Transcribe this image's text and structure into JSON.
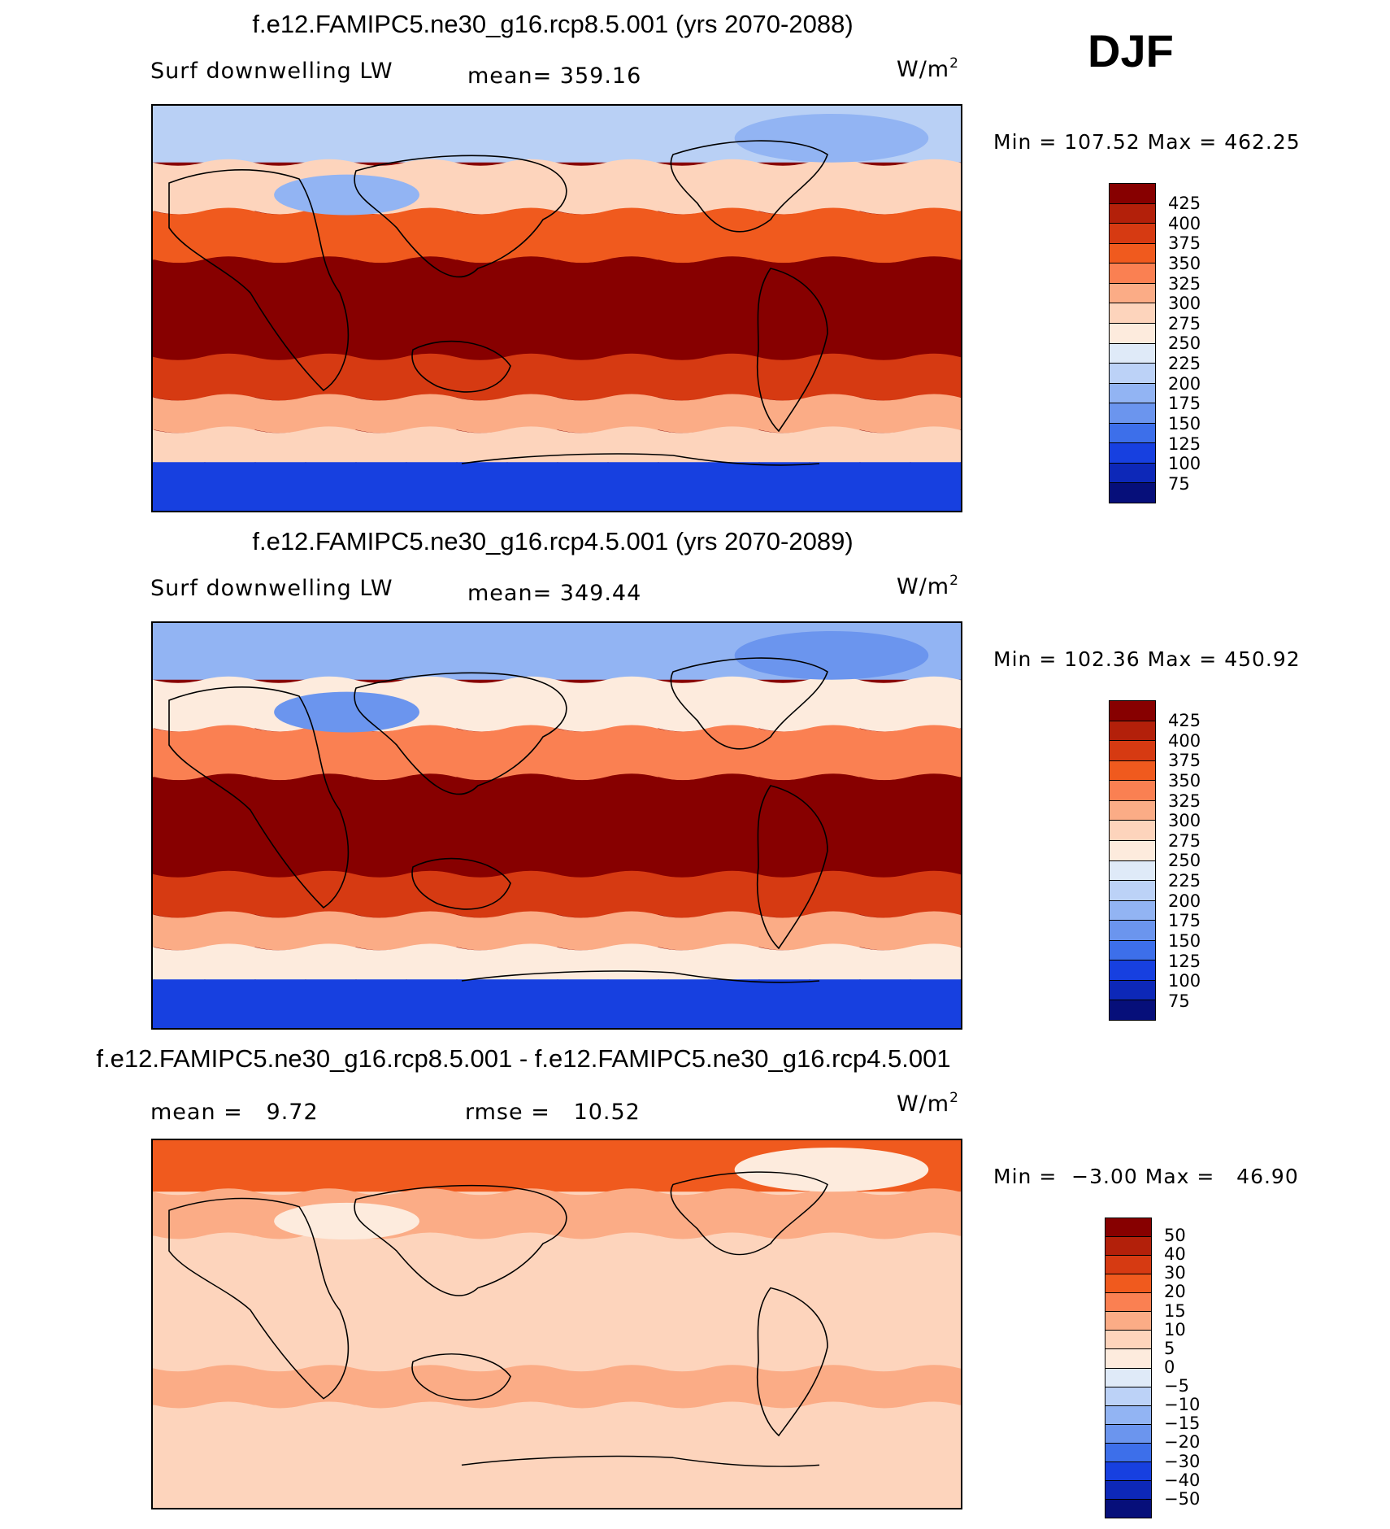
{
  "season": "DJF",
  "units_text": "W/m",
  "units_exp": "2",
  "minmax_labels": {
    "min": "Min",
    "max": "Max"
  },
  "panels": [
    {
      "title": "f.e12.FAMIPC5.ne30_g16.rcp8.5.001 (yrs 2070-2088)",
      "left_label": "Surf downwelling LW",
      "stat_label": "mean=",
      "stat_value": "359.16",
      "min": "107.52",
      "max": "462.25",
      "colorbar_labels": [
        "425",
        "400",
        "375",
        "350",
        "325",
        "300",
        "275",
        "250",
        "225",
        "200",
        "175",
        "150",
        "125",
        "100",
        "75"
      ],
      "colorbar_colors": [
        "#870000",
        "#b3200a",
        "#d63a12",
        "#f05a1e",
        "#fa8052",
        "#fbac86",
        "#fdd4bc",
        "#fdebdd",
        "#dfeaf8",
        "#bcd2f7",
        "#92b4f3",
        "#6b95ee",
        "#3d6fea",
        "#1740e0",
        "#0d28b8",
        "#060f7a"
      ],
      "map": {
        "polar_north": "#b9d0f5",
        "mid_north": "#fdd4bc",
        "subtropic_north": "#f05a1e",
        "tropics": "#870000",
        "subtropic_south": "#d63a12",
        "mid_south": "#fbac86",
        "south_ocean": "#fdd4bc",
        "antarctic": "#1740e0",
        "ice": "#92b4f3"
      }
    },
    {
      "title": "f.e12.FAMIPC5.ne30_g16.rcp4.5.001 (yrs 2070-2089)",
      "left_label": "Surf downwelling LW",
      "stat_label": "mean=",
      "stat_value": "349.44",
      "min": "102.36",
      "max": "450.92",
      "colorbar_labels": [
        "425",
        "400",
        "375",
        "350",
        "325",
        "300",
        "275",
        "250",
        "225",
        "200",
        "175",
        "150",
        "125",
        "100",
        "75"
      ],
      "colorbar_colors": [
        "#870000",
        "#b3200a",
        "#d63a12",
        "#f05a1e",
        "#fa8052",
        "#fbac86",
        "#fdd4bc",
        "#fdebdd",
        "#dfeaf8",
        "#bcd2f7",
        "#92b4f3",
        "#6b95ee",
        "#3d6fea",
        "#1740e0",
        "#0d28b8",
        "#060f7a"
      ],
      "map": {
        "polar_north": "#92b4f3",
        "mid_north": "#fdebdd",
        "subtropic_north": "#fa8052",
        "tropics": "#870000",
        "subtropic_south": "#d63a12",
        "mid_south": "#fbac86",
        "south_ocean": "#fdebdd",
        "antarctic": "#1740e0",
        "ice": "#6b95ee"
      }
    },
    {
      "title": "f.e12.FAMIPC5.ne30_g16.rcp8.5.001 - f.e12.FAMIPC5.ne30_g16.rcp4.5.001",
      "left_label": "mean =",
      "left_value": "9.72",
      "stat_label": "rmse =",
      "stat_value": "10.52",
      "min": "−3.00",
      "max": "46.90",
      "colorbar_labels": [
        "50",
        "40",
        "30",
        "20",
        "15",
        "10",
        "5",
        "0",
        "−5",
        "−10",
        "−15",
        "−20",
        "−30",
        "−40",
        "−50"
      ],
      "colorbar_colors": [
        "#870000",
        "#b3200a",
        "#d63a12",
        "#f05a1e",
        "#fa8052",
        "#fbac86",
        "#fdd4bc",
        "#fdebdd",
        "#dfeaf8",
        "#bcd2f7",
        "#92b4f3",
        "#6b95ee",
        "#3d6fea",
        "#1740e0",
        "#0d28b8",
        "#060f7a"
      ],
      "map": {
        "polar_north": "#f05a1e",
        "mid_north": "#fbac86",
        "subtropic_north": "#fdd4bc",
        "tropics": "#fdd4bc",
        "subtropic_south": "#fbac86",
        "mid_south": "#fdd4bc",
        "south_ocean": "#fdd4bc",
        "antarctic": "#fdd4bc",
        "ice": "#fdebdd"
      }
    }
  ]
}
